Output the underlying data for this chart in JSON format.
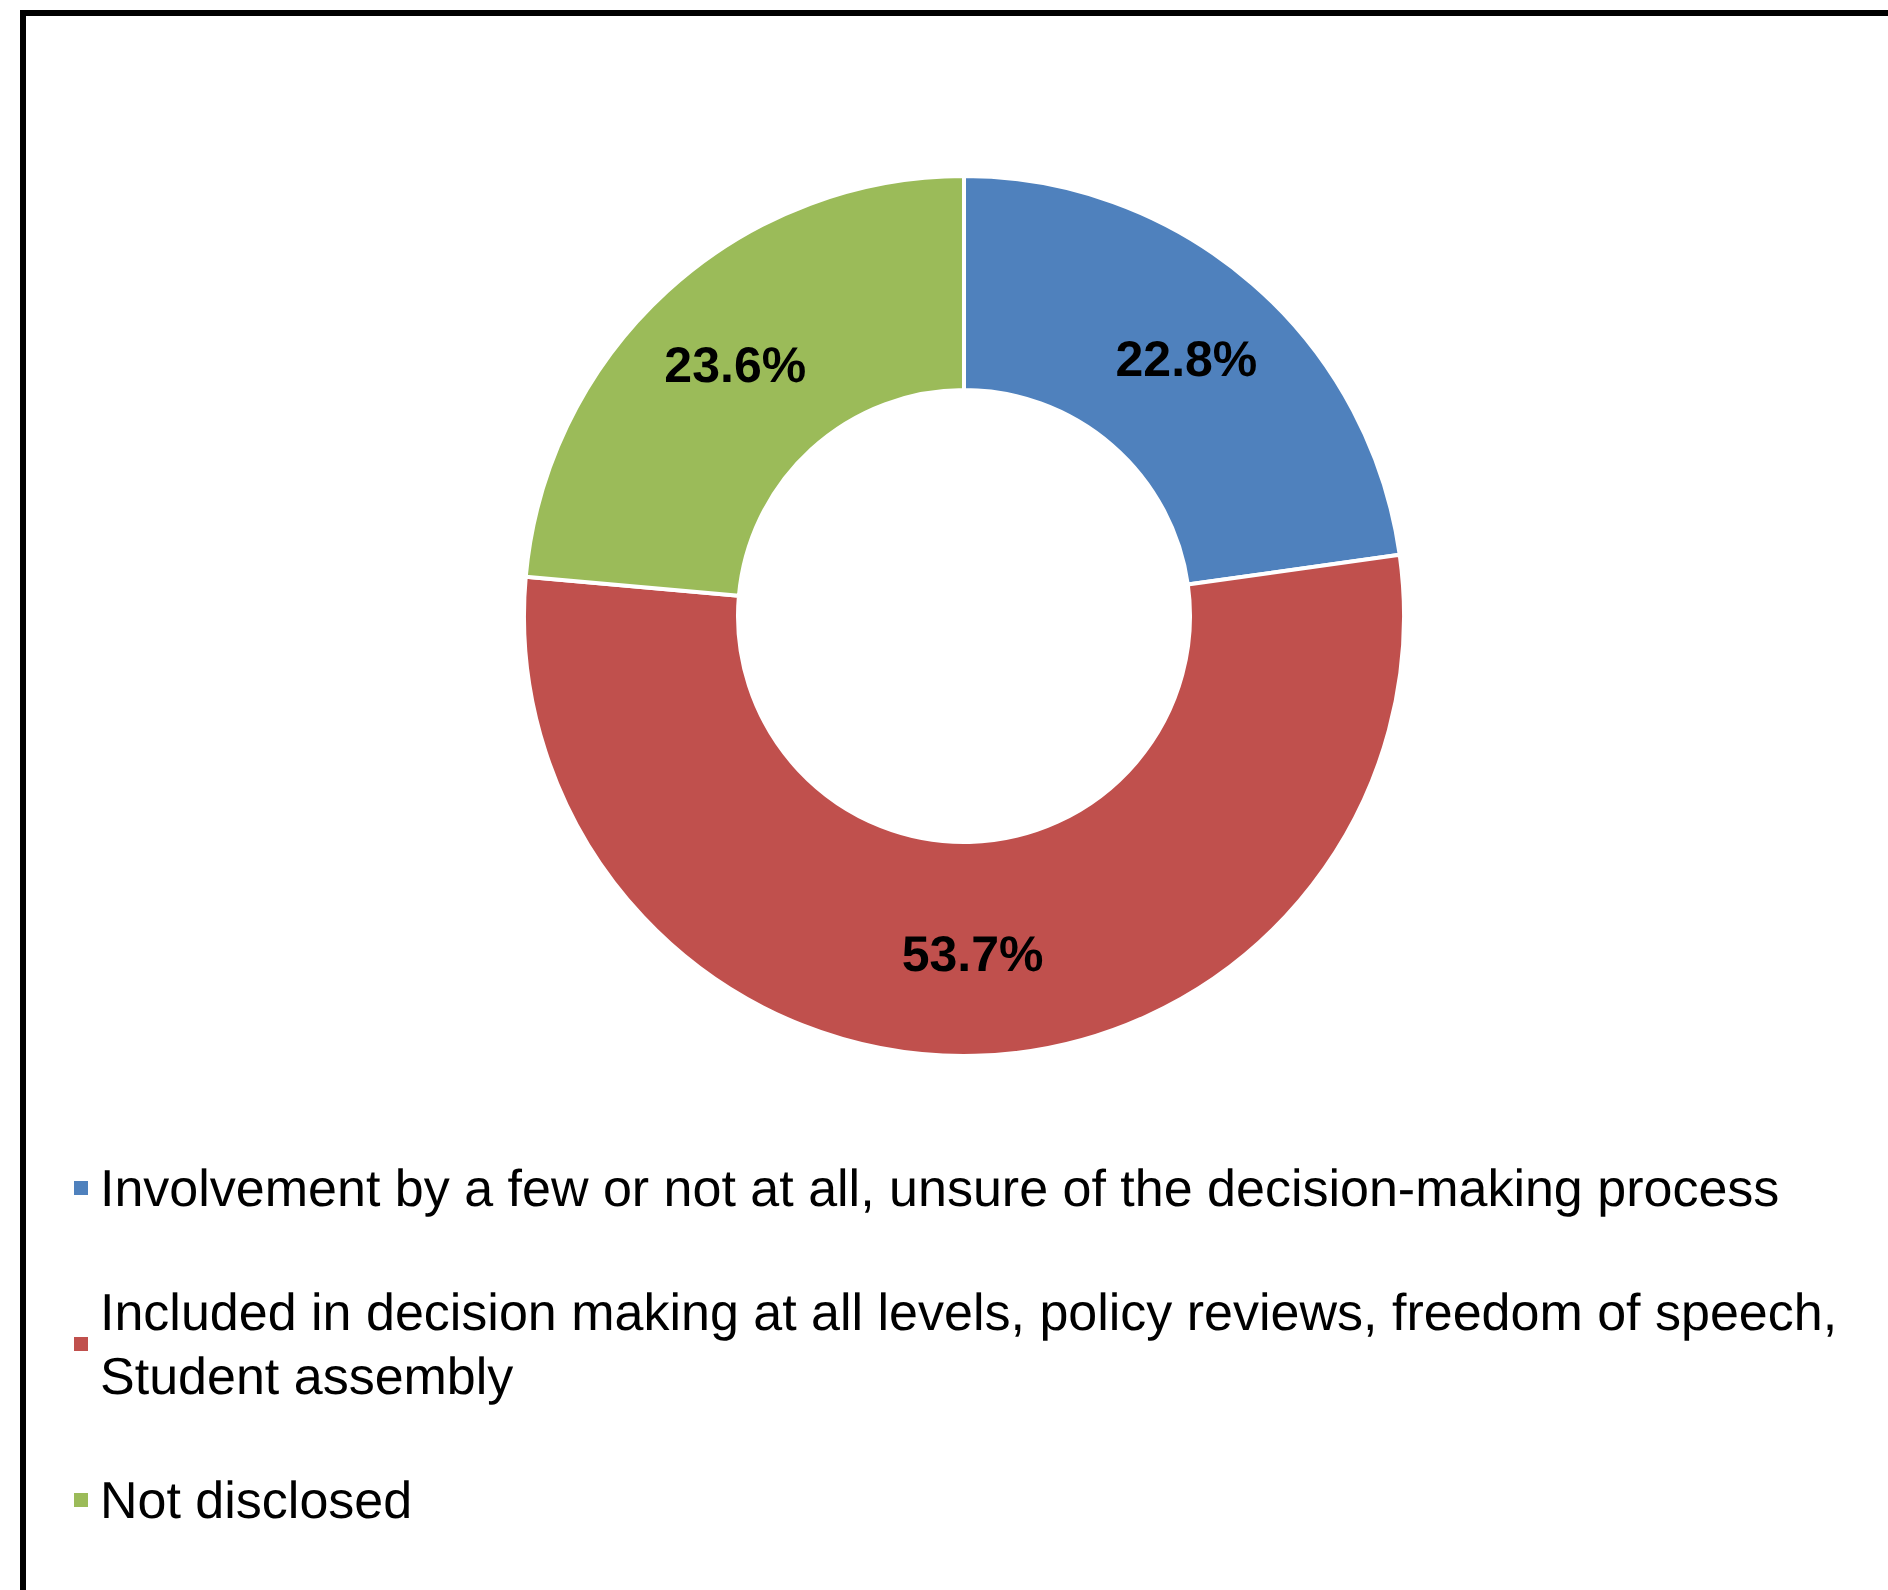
{
  "chart_data": {
    "type": "donut",
    "categories": [
      "Involvement by a few or not at all, unsure of the decision-making process",
      "Included in decision making at all levels, policy reviews, freedom of speech, Student assembly",
      "Not disclosed"
    ],
    "values": [
      22.8,
      53.7,
      23.6
    ],
    "colors": [
      "#4f81bd",
      "#c0504d",
      "#9bbb59"
    ],
    "value_labels": [
      "22.8%",
      "53.7%",
      "23.6%"
    ],
    "legend": "bottom"
  }
}
